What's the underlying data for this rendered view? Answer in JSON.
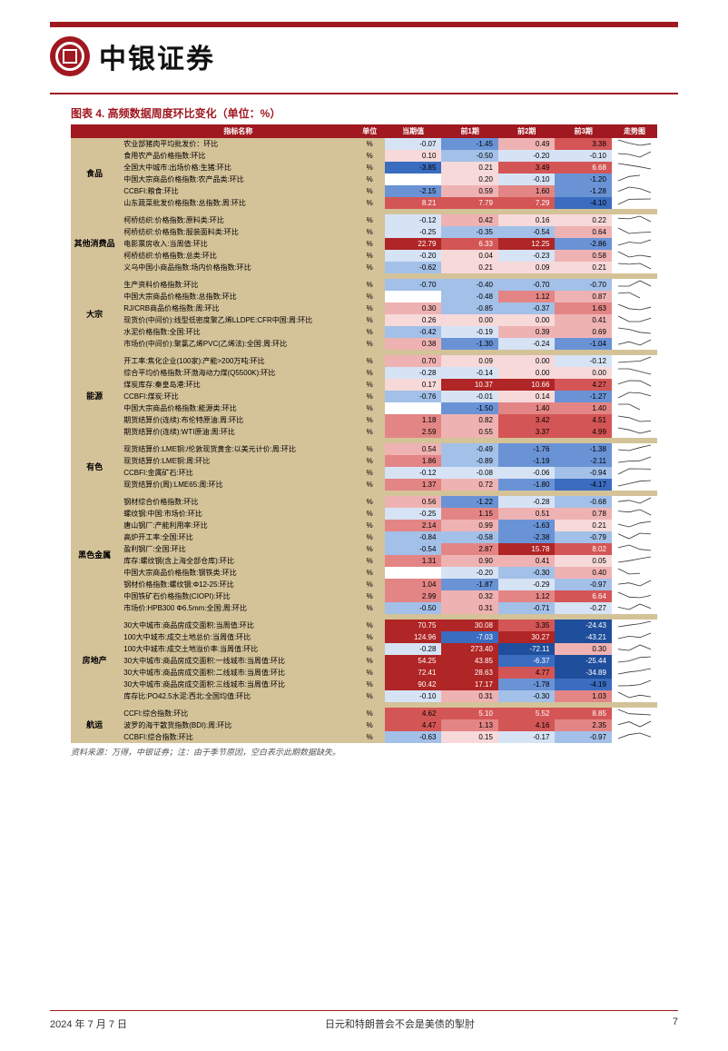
{
  "header": {
    "company": "中银证券"
  },
  "footer": {
    "date": "2024 年 7 月 7 日",
    "title": "日元和特朗普会不会是美债的掣肘",
    "page": "7"
  },
  "chart": {
    "title": "图表 4. 高频数据周度环比变化（单位：%）",
    "note": "资料来源：万得，中银证券；注：由于季节原因，空白表示此期数据缺失。",
    "headers": [
      "指标名称",
      "单位",
      "当期值",
      "前1期",
      "前2期",
      "前3期",
      "走势图"
    ],
    "colors": {
      "neg5": "#1f4e9c",
      "neg4": "#3a6cc0",
      "neg3": "#6a93d6",
      "neg2": "#a3c0e8",
      "neg1": "#d6e3f5",
      "zero": "#ffffff",
      "pos1": "#f7d9d9",
      "pos2": "#efb2b2",
      "pos3": "#e38585",
      "pos4": "#d45555",
      "pos5": "#b02525"
    },
    "groups": [
      {
        "cat": "食品",
        "rows": [
          {
            "name": "农业部猪肉平均批发价：环比",
            "vals": [
              -0.07,
              -1.45,
              0.49,
              3.38
            ]
          },
          {
            "name": "食用农产品价格指数:环比",
            "vals": [
              0.1,
              -0.5,
              -0.2,
              -0.1
            ]
          },
          {
            "name": "全国大中城市:出场价格:生猪:环比",
            "vals": [
              -3.85,
              0.21,
              3.49,
              6.68
            ]
          },
          {
            "name": "中国大宗商品价格指数:农产品类:环比",
            "vals": [
              null,
              0.2,
              -0.1,
              -1.2
            ]
          },
          {
            "name": "CCBFI:粮食:环比",
            "vals": [
              -2.15,
              0.59,
              1.6,
              -1.28
            ]
          },
          {
            "name": "山东蔬菜批发价格指数:总指数:周:环比",
            "vals": [
              8.21,
              7.79,
              7.29,
              -4.1
            ]
          }
        ]
      },
      {
        "cat": "其他消费品",
        "rows": [
          {
            "name": "柯桥纺织:价格指数:原料类:环比",
            "vals": [
              -0.12,
              0.42,
              0.16,
              0.22
            ]
          },
          {
            "name": "柯桥纺织:价格指数:服装面料类:环比",
            "vals": [
              -0.25,
              -0.35,
              -0.54,
              0.64
            ]
          },
          {
            "name": "电影票房收入:当周值:环比",
            "vals": [
              22.79,
              6.33,
              12.25,
              -2.86
            ]
          },
          {
            "name": "柯桥纺织:价格指数:总类:环比",
            "vals": [
              -0.2,
              0.04,
              -0.23,
              0.58
            ]
          },
          {
            "name": "义乌中国小商品指数:场内价格指数:环比",
            "vals": [
              -0.62,
              0.21,
              0.09,
              0.21
            ]
          }
        ]
      },
      {
        "cat": "大宗",
        "rows": [
          {
            "name": "生产资料价格指数:环比",
            "vals": [
              -0.7,
              -0.4,
              -0.7,
              -0.7
            ]
          },
          {
            "name": "中国大宗商品价格指数:总指数:环比",
            "vals": [
              null,
              -0.48,
              1.12,
              0.87
            ]
          },
          {
            "name": "RJ/CRB商品价格指数:周:环比",
            "vals": [
              0.3,
              -0.85,
              -0.37,
              1.63
            ]
          },
          {
            "name": "现货价(中间价):线型低密度聚乙烯LLDPE:CFR中国:周:环比",
            "vals": [
              0.26,
              0.0,
              0.0,
              0.41
            ]
          },
          {
            "name": "水泥价格指数:全国:环比",
            "vals": [
              -0.42,
              -0.19,
              0.39,
              0.69
            ]
          },
          {
            "name": "市场价(中间价):聚氯乙烯PVC(乙烯法):全国:周:环比",
            "vals": [
              0.38,
              -1.3,
              -0.24,
              -1.04
            ]
          }
        ]
      },
      {
        "cat": "能源",
        "rows": [
          {
            "name": "开工率:焦化企业(100家):产能>200万吨:环比",
            "vals": [
              0.7,
              0.09,
              0.0,
              -0.12
            ]
          },
          {
            "name": "综合平均价格指数:环渤海动力煤(Q5500K):环比",
            "vals": [
              -0.28,
              -0.14,
              0.0,
              0.0
            ]
          },
          {
            "name": "煤炭库存:秦皇岛港:环比",
            "vals": [
              0.17,
              10.37,
              10.66,
              4.27
            ]
          },
          {
            "name": "CCBFI:煤炭:环比",
            "vals": [
              -0.76,
              -0.01,
              0.14,
              -1.27
            ]
          },
          {
            "name": "中国大宗商品价格指数:能源类:环比",
            "vals": [
              null,
              -1.5,
              1.4,
              1.4
            ]
          },
          {
            "name": "期货结算价(连续):布伦特原油:周:环比",
            "vals": [
              1.18,
              0.82,
              3.42,
              4.51
            ]
          },
          {
            "name": "期货结算价(连续):WTI原油:周:环比",
            "vals": [
              2.59,
              0.55,
              3.37,
              4.99
            ]
          }
        ]
      },
      {
        "cat": "有色",
        "rows": [
          {
            "name": "现货结算价:LME铜:/伦敦现货黄金:以美元计价:周:环比",
            "vals": [
              0.54,
              -0.49,
              -1.76,
              -1.38
            ]
          },
          {
            "name": "现货结算价:LME铜:周:环比",
            "vals": [
              1.86,
              -0.89,
              -1.19,
              -2.11
            ]
          },
          {
            "name": "CCBFI:金属矿石:环比",
            "vals": [
              -0.12,
              -0.08,
              -0.06,
              -0.94
            ]
          },
          {
            "name": "现货结算价(周):LME65:周:环比",
            "vals": [
              1.37,
              0.72,
              -1.8,
              -4.17
            ]
          }
        ]
      },
      {
        "cat": "黑色金属",
        "rows": [
          {
            "name": "钢材综合价格指数:环比",
            "vals": [
              0.56,
              -1.22,
              -0.28,
              -0.68
            ]
          },
          {
            "name": "螺纹钢:中国:市场价:环比",
            "vals": [
              -0.25,
              1.15,
              0.51,
              0.78
            ]
          },
          {
            "name": "唐山钢厂:产能利用率:环比",
            "vals": [
              2.14,
              0.99,
              -1.63,
              0.21
            ]
          },
          {
            "name": "高炉开工率:全国:环比",
            "vals": [
              -0.84,
              -0.58,
              -2.38,
              -0.79
            ]
          },
          {
            "name": "盈利钢厂:全国:环比",
            "vals": [
              -0.54,
              2.87,
              15.78,
              8.02
            ]
          },
          {
            "name": "库存:螺纹钢(含上海全部仓库):环比",
            "vals": [
              1.31,
              0.9,
              0.41,
              0.05
            ]
          },
          {
            "name": "中国大宗商品价格指数:钢铁类:环比",
            "vals": [
              null,
              -0.2,
              -0.3,
              0.4
            ]
          },
          {
            "name": "钢材价格指数:螺纹钢:Φ12-25:环比",
            "vals": [
              1.04,
              -1.87,
              -0.29,
              -0.97
            ]
          },
          {
            "name": "中国铁矿石价格指数(CIOPI):环比",
            "vals": [
              2.99,
              0.32,
              1.12,
              6.64
            ]
          },
          {
            "name": "市场价:HPB300 Φ6.5mm:全国:周:环比",
            "vals": [
              -0.5,
              0.31,
              -0.71,
              -0.27
            ]
          }
        ]
      },
      {
        "cat": "房地产",
        "rows": [
          {
            "name": "30大中城市:商品房成交面积:当周值:环比",
            "vals": [
              70.75,
              30.08,
              3.35,
              -24.43
            ]
          },
          {
            "name": "100大中城市:成交土地总价:当周值:环比",
            "vals": [
              124.96,
              -7.03,
              30.27,
              -43.21
            ]
          },
          {
            "name": "100大中城市:成交土地溢价率:当周值:环比",
            "vals": [
              -0.28,
              273.4,
              -72.11,
              0.3
            ]
          },
          {
            "name": "30大中城市:商品房成交面积:一线城市:当周值:环比",
            "vals": [
              54.25,
              43.85,
              -6.37,
              -25.44
            ]
          },
          {
            "name": "30大中城市:商品房成交面积:二线城市:当周值:环比",
            "vals": [
              72.41,
              28.63,
              4.77,
              -34.89
            ]
          },
          {
            "name": "30大中城市:商品房成交面积:三线城市:当周值:环比",
            "vals": [
              90.42,
              17.17,
              -1.78,
              -4.19
            ]
          },
          {
            "name": "库存比:PO42.5水泥:西北:全国均值:环比",
            "vals": [
              -0.1,
              0.31,
              -0.3,
              1.03
            ]
          }
        ]
      },
      {
        "cat": "航运",
        "rows": [
          {
            "name": "CCFI:综合指数:环比",
            "vals": [
              4.62,
              5.1,
              5.52,
              8.85
            ]
          },
          {
            "name": "波罗的海干散货指数(BDI):周:环比",
            "vals": [
              4.47,
              1.13,
              4.16,
              2.35
            ]
          },
          {
            "name": "CCBFI:综合指数:环比",
            "vals": [
              -0.63,
              0.15,
              -0.17,
              -0.97
            ]
          }
        ]
      }
    ]
  }
}
